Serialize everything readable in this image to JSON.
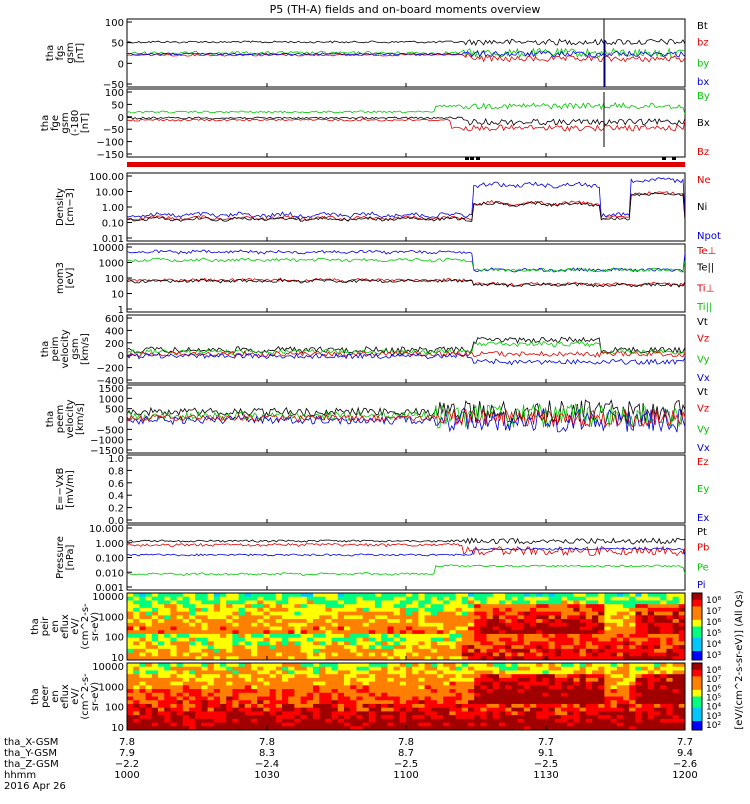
{
  "title": "P5 (TH-A) fields and on-board moments overview",
  "colors": {
    "black": "#000000",
    "red": "#e00000",
    "green": "#00c800",
    "blue": "#0000e0"
  },
  "chart_data": [
    {
      "type": "line",
      "ylabel": [
        "tha",
        "fgs",
        "gsm",
        "[nT]"
      ],
      "yticks": [
        "100",
        "50",
        "0",
        "−50"
      ],
      "ylim": [
        -80,
        110
      ],
      "series": [
        {
          "name": "Bt",
          "color": "black"
        },
        {
          "name": "bz",
          "color": "red"
        },
        {
          "name": "by",
          "color": "green"
        },
        {
          "name": "bx",
          "color": "blue"
        }
      ]
    },
    {
      "type": "line",
      "ylabel": [
        "tha",
        "fge",
        "gsm",
        "(-180",
        "[nT]"
      ],
      "yticks": [
        "100",
        "50",
        "0",
        "−50",
        "−100",
        "−150"
      ],
      "ylim": [
        -180,
        110
      ],
      "series": [
        {
          "name": "By",
          "color": "green"
        },
        {
          "name": "Bx",
          "color": "black"
        },
        {
          "name": "Bz",
          "color": "red"
        }
      ]
    },
    {
      "type": "line",
      "ylabel": [
        "Density",
        "[cm−3]"
      ],
      "yticks": [
        "100.00",
        "10.00",
        "1.00",
        "0.10",
        "0.01"
      ],
      "scale": "log",
      "series": [
        {
          "name": "Ne",
          "color": "red"
        },
        {
          "name": "Ni",
          "color": "black"
        },
        {
          "name": "Npot",
          "color": "blue"
        }
      ]
    },
    {
      "type": "line",
      "ylabel": [
        "mom3",
        "[eV]"
      ],
      "yticks": [
        "10000",
        "1000",
        "100",
        "10",
        "1"
      ],
      "scale": "log",
      "series": [
        {
          "name": "Te⊥",
          "color": "red"
        },
        {
          "name": "Te||",
          "color": "black"
        },
        {
          "name": "Ti⊥",
          "color": "red"
        },
        {
          "name": "Ti||",
          "color": "green"
        }
      ]
    },
    {
      "type": "line",
      "ylabel": [
        "tha",
        "peim",
        "velocity",
        "gsm",
        "[km/s]"
      ],
      "yticks": [
        "600",
        "400",
        "200",
        "0",
        "−200",
        "−400"
      ],
      "ylim": [
        -400,
        600
      ],
      "series": [
        {
          "name": "Vt",
          "color": "black"
        },
        {
          "name": "Vz",
          "color": "red"
        },
        {
          "name": "Vy",
          "color": "green"
        },
        {
          "name": "Vx",
          "color": "blue"
        }
      ]
    },
    {
      "type": "line",
      "ylabel": [
        "tha",
        "peem",
        "velocity",
        "[km/s]"
      ],
      "yticks": [
        "1500",
        "1000",
        "500",
        "0",
        "−500",
        "−1000",
        "−1500"
      ],
      "ylim": [
        -1500,
        1500
      ],
      "series": [
        {
          "name": "Vt",
          "color": "black"
        },
        {
          "name": "Vz",
          "color": "red"
        },
        {
          "name": "Vy",
          "color": "green"
        },
        {
          "name": "Vx",
          "color": "blue"
        }
      ]
    },
    {
      "type": "line",
      "ylabel": [
        "E=−VxB",
        "[mV/m]"
      ],
      "yticks": [
        "1.0",
        "0.8",
        "0.6",
        "0.4",
        "0.2",
        "0.0"
      ],
      "ylim": [
        0,
        1
      ],
      "series": [
        {
          "name": "Ez",
          "color": "red"
        },
        {
          "name": "Ey",
          "color": "green"
        },
        {
          "name": "Ex",
          "color": "blue"
        }
      ]
    },
    {
      "type": "line",
      "ylabel": [
        "Pressure",
        "[nPa]"
      ],
      "yticks": [
        "10.000",
        "1.000",
        "0.100",
        "0.010",
        "0.001"
      ],
      "scale": "log",
      "series": [
        {
          "name": "Pt",
          "color": "black"
        },
        {
          "name": "Pb",
          "color": "red"
        },
        {
          "name": "Pe",
          "color": "green"
        },
        {
          "name": "Pi",
          "color": "blue"
        }
      ]
    },
    {
      "type": "heatmap",
      "ylabel": [
        "tha",
        "peir",
        "en",
        "eflux",
        "eV/",
        "(cm^2-s-",
        "sr-eV)"
      ],
      "yticks": [
        "10000",
        "1000",
        "100",
        "10"
      ],
      "scale": "log",
      "colorbar_ticks": [
        "10⁸",
        "10⁷",
        "10⁶",
        "10⁵",
        "10⁴",
        "10³"
      ]
    },
    {
      "type": "heatmap",
      "ylabel": [
        "tha",
        "peer",
        "en",
        "eflux",
        "eV/",
        "(cm^2-s-",
        "sr-eV)"
      ],
      "yticks": [
        "10000",
        "1000",
        "100",
        "10"
      ],
      "scale": "log",
      "colorbar_ticks": [
        "10⁸",
        "10⁷",
        "10⁶",
        "10⁵",
        "10⁴",
        "10³",
        "10²"
      ]
    }
  ],
  "colorbar": {
    "label": "[eV/(cm^2-s-sr-eV)] (All Qs)"
  },
  "xaxis": {
    "row_labels": [
      "tha_X-GSM",
      "tha_Y-GSM",
      "tha_Z-GSM",
      "hhmm",
      "2016 Apr 26"
    ],
    "x_gsm": [
      "7.8",
      "7.8",
      "7.8",
      "7.7",
      "7.7"
    ],
    "y_gsm": [
      "7.9",
      "8.3",
      "8.7",
      "9.1",
      "9.4"
    ],
    "z_gsm": [
      "−2.2",
      "−2.4",
      "−2.5",
      "−2.5",
      "−2.6"
    ],
    "hhmm": [
      "1000",
      "1030",
      "1100",
      "1130",
      "1200"
    ]
  }
}
